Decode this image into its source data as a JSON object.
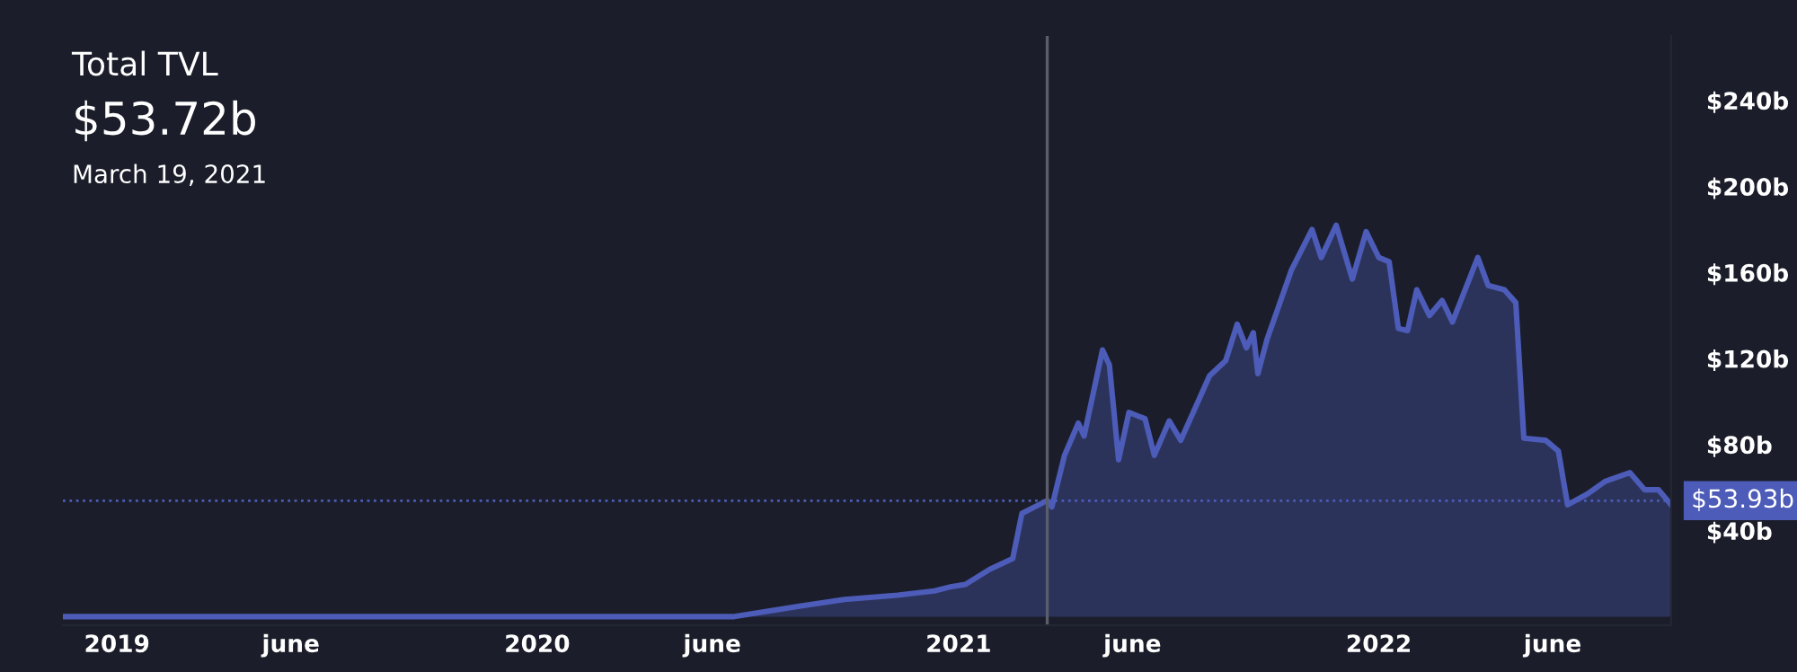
{
  "chart_data": {
    "type": "area",
    "title": "Total TVL",
    "subtitle": "$53.72b",
    "annotations": [
      "March 19, 2021"
    ],
    "x": [
      "2018-11-15",
      "2020-06-19",
      "2020-08-17",
      "2020-09-24",
      "2020-11-09",
      "2020-12-11",
      "2020-12-26",
      "2021-01-07",
      "2021-01-28",
      "2021-02-17",
      "2021-02-25",
      "2021-03-19",
      "2021-03-23",
      "2021-04-03",
      "2021-04-15",
      "2021-04-20",
      "2021-05-06",
      "2021-05-12",
      "2021-05-20",
      "2021-05-29",
      "2021-06-12",
      "2021-06-20",
      "2021-07-03",
      "2021-07-13",
      "2021-08-07",
      "2021-08-21",
      "2021-08-31",
      "2021-09-08",
      "2021-09-14",
      "2021-09-18",
      "2021-09-26",
      "2021-10-17",
      "2021-11-04",
      "2021-11-12",
      "2021-11-25",
      "2021-12-09",
      "2021-12-21",
      "2022-01-01",
      "2022-01-10",
      "2022-01-18",
      "2022-01-26",
      "2022-02-03",
      "2022-02-14",
      "2022-02-25",
      "2022-03-06",
      "2022-03-28",
      "2022-04-06",
      "2022-04-20",
      "2022-04-30",
      "2022-05-07",
      "2022-05-26",
      "2022-06-06",
      "2022-06-14",
      "2022-07-01",
      "2022-07-17",
      "2022-08-07",
      "2022-08-20",
      "2022-09-01",
      "2022-09-12"
    ],
    "series": [
      {
        "color": "#4c5cb8",
        "values": [
          0,
          0,
          5,
          8,
          10,
          12,
          14,
          15,
          22,
          27,
          48,
          54,
          51,
          75,
          90,
          84,
          124,
          117,
          73,
          95,
          92,
          75,
          91,
          82,
          112,
          119,
          136,
          125,
          132,
          113,
          129,
          161,
          180,
          167,
          182,
          157,
          179,
          167,
          165,
          134,
          133,
          152,
          140,
          147,
          137,
          167,
          154,
          152,
          146,
          83,
          82,
          77,
          52,
          57,
          63,
          67,
          59,
          59,
          52
        ]
      }
    ],
    "xlim": [
      "2018-11-15",
      "2022-09-12"
    ],
    "xticks": [
      {
        "value": "2019-01-01",
        "label": "2019"
      },
      {
        "value": "2019-06-01",
        "label": "june"
      },
      {
        "value": "2020-01-01",
        "label": "2020"
      },
      {
        "value": "2020-06-01",
        "label": "june"
      },
      {
        "value": "2021-01-01",
        "label": "2021"
      },
      {
        "value": "2021-06-01",
        "label": "june"
      },
      {
        "value": "2022-01-01",
        "label": "2022"
      },
      {
        "value": "2022-06-01",
        "label": "june"
      }
    ],
    "ylim": [
      -4,
      270
    ],
    "yticks": [
      {
        "value": 40,
        "label": "$40b"
      },
      {
        "value": 80,
        "label": "$80b"
      },
      {
        "value": 120,
        "label": "$120b"
      },
      {
        "value": 160,
        "label": "$160b"
      },
      {
        "value": 200,
        "label": "$200b"
      },
      {
        "value": 240,
        "label": "$240b"
      }
    ],
    "ref_lines": [
      {
        "axis": "y",
        "value": 53.93,
        "label": "$53.93b",
        "color": "#4c5cb8",
        "line_style": "dotted"
      },
      {
        "axis": "x",
        "value": "2021-03-19",
        "color": "#5a5e6a",
        "line_style": "solid"
      }
    ],
    "grid": false,
    "legend": false
  }
}
